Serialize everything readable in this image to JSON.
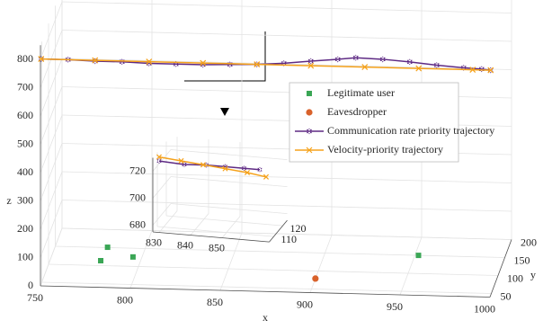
{
  "chart_data": [
    {
      "type": "line3d",
      "grid": true,
      "xlabel": "x",
      "ylabel": "y",
      "zlabel": "z",
      "xlim": [
        750,
        1000
      ],
      "ylim": [
        40,
        200
      ],
      "zlim": [
        0,
        850
      ],
      "xticks": [
        750,
        800,
        850,
        900,
        950,
        1000
      ],
      "yticks": [
        50,
        100,
        150,
        200
      ],
      "zticks": [
        0,
        100,
        200,
        300,
        400,
        500,
        600,
        700,
        800
      ],
      "series": [
        {
          "name": "Legitimate user",
          "color": "#3aa655",
          "marker": "square",
          "mode": "markers",
          "x": [
            779,
            778,
            795,
            952
          ],
          "y": [
            151,
            113.5,
            126,
            150
          ],
          "z": [
            0,
            0,
            0,
            0
          ]
        },
        {
          "name": "Eavesdropper",
          "color": "#d9622b",
          "marker": "circle",
          "mode": "markers",
          "x": [
            900
          ],
          "y": [
            79
          ],
          "z": [
            0
          ]
        },
        {
          "name": "Communication rate priority trajectory",
          "color": "#5e2a84",
          "marker": "star",
          "mode": "lines+markers",
          "x": [
            750,
            765,
            780,
            795,
            810,
            825,
            840,
            855,
            870,
            885,
            900,
            915,
            925,
            940,
            955,
            970,
            985,
            995,
            1000
          ],
          "y": [
            45,
            45,
            45,
            45,
            45,
            45,
            45,
            45,
            45,
            45,
            45,
            45,
            45,
            45,
            45,
            45,
            45,
            45,
            45
          ],
          "z": [
            795,
            795,
            792,
            792,
            789,
            789,
            789,
            792,
            795,
            801,
            811,
            820,
            827,
            824,
            817,
            808,
            801,
            798,
            795
          ]
        },
        {
          "name": "Velocity-priority trajectory",
          "color": "#f5a21b",
          "marker": "x",
          "mode": "lines+markers",
          "x": [
            750,
            780,
            810,
            840,
            870,
            900,
            930,
            960,
            990,
            1000
          ],
          "y": [
            45,
            45,
            45,
            45,
            45,
            45,
            45,
            45,
            45,
            45
          ],
          "z": [
            795,
            795,
            795,
            795,
            795,
            795,
            795,
            795,
            795,
            795
          ]
        }
      ]
    },
    {
      "type": "line3d",
      "grid": true,
      "xlim": [
        828,
        865
      ],
      "ylim": [
        105,
        125
      ],
      "zlim": [
        675,
        730
      ],
      "xticks": [
        830,
        840,
        850
      ],
      "yticks": [
        110,
        120
      ],
      "zticks": [
        680,
        700,
        720
      ],
      "series": [
        {
          "color": "#5e2a84",
          "marker": "star",
          "mode": "lines+markers",
          "x": [
            828,
            836,
            843,
            849,
            855,
            860
          ],
          "y": [
            112,
            112,
            112,
            112,
            112,
            112
          ],
          "z": [
            722,
            721,
            722,
            722,
            722,
            722
          ]
        },
        {
          "color": "#f5a21b",
          "marker": "x",
          "mode": "lines+markers",
          "x": [
            828,
            835,
            842,
            849,
            856,
            862
          ],
          "y": [
            112,
            112,
            112,
            112,
            112,
            112
          ],
          "z": [
            725,
            723.5,
            722,
            720.5,
            719,
            717
          ]
        }
      ]
    }
  ]
}
